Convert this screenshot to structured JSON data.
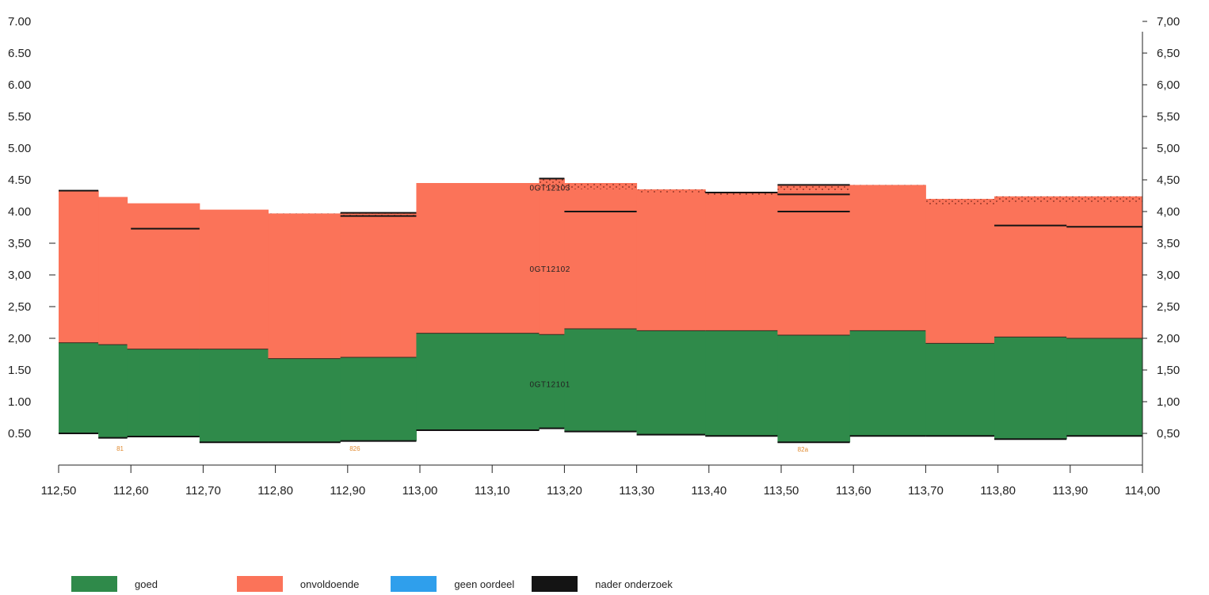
{
  "chart_data": {
    "type": "area",
    "x_ticks": [
      "112,50",
      "112,60",
      "112,70",
      "112,80",
      "112,90",
      "113,00",
      "113,10",
      "113,20",
      "113,30",
      "113,40",
      "113,50",
      "113,60",
      "113,70",
      "113,80",
      "113,90",
      "114,00"
    ],
    "xlim": [
      112.5,
      114.0
    ],
    "ylim": [
      0,
      7
    ],
    "left_y_ticks": [
      {
        "v": 7.0,
        "label": "7.00"
      },
      {
        "v": 6.5,
        "label": "6.50"
      },
      {
        "v": 6.0,
        "label": "6.00"
      },
      {
        "v": 5.5,
        "label": "5.50"
      },
      {
        "v": 5.0,
        "label": "5.00"
      },
      {
        "v": 4.5,
        "label": "4.50"
      },
      {
        "v": 4.0,
        "label": "4.00"
      },
      {
        "v": 3.5,
        "label": "3,50"
      },
      {
        "v": 3.0,
        "label": "3,00"
      },
      {
        "v": 2.5,
        "label": "2,50"
      },
      {
        "v": 2.0,
        "label": "2,00"
      },
      {
        "v": 1.5,
        "label": "1.50"
      },
      {
        "v": 1.0,
        "label": "1.00"
      },
      {
        "v": 0.5,
        "label": "0.50"
      }
    ],
    "right_y_ticks": [
      {
        "v": 7.0,
        "label": "7,00"
      },
      {
        "v": 6.5,
        "label": "6,50"
      },
      {
        "v": 6.0,
        "label": "6,00"
      },
      {
        "v": 5.5,
        "label": "5,50"
      },
      {
        "v": 5.0,
        "label": "5,00"
      },
      {
        "v": 4.5,
        "label": "4,50"
      },
      {
        "v": 4.0,
        "label": "4,00"
      },
      {
        "v": 3.5,
        "label": "3,50"
      },
      {
        "v": 3.0,
        "label": "3,00"
      },
      {
        "v": 2.5,
        "label": "2,50"
      },
      {
        "v": 2.0,
        "label": "2,00"
      },
      {
        "v": 1.5,
        "label": "1,50"
      },
      {
        "v": 1.0,
        "label": "1,00"
      },
      {
        "v": 0.5,
        "label": "0,50"
      }
    ],
    "segments": [
      {
        "x0": 112.5,
        "x1": 112.555,
        "base": 0.5,
        "green_top": 1.93,
        "red_top": 4.33,
        "dotted_top": 4.33
      },
      {
        "x0": 112.555,
        "x1": 112.595,
        "base": 0.43,
        "green_top": 1.9,
        "red_top": 4.23,
        "dotted_top": 4.23
      },
      {
        "x0": 112.595,
        "x1": 112.695,
        "base": 0.45,
        "green_top": 1.83,
        "red_top": 4.13,
        "dotted_top": 4.13
      },
      {
        "x0": 112.695,
        "x1": 112.79,
        "base": 0.36,
        "green_top": 1.83,
        "red_top": 4.03,
        "dotted_top": 4.03
      },
      {
        "x0": 112.79,
        "x1": 112.89,
        "base": 0.36,
        "green_top": 1.68,
        "red_top": 3.95,
        "dotted_top": 3.97
      },
      {
        "x0": 112.89,
        "x1": 112.995,
        "base": 0.38,
        "green_top": 1.7,
        "red_top": 3.93,
        "dotted_top": 3.98
      },
      {
        "x0": 112.995,
        "x1": 113.165,
        "base": 0.55,
        "green_top": 2.08,
        "red_top": 4.45,
        "dotted_top": 4.45
      },
      {
        "x0": 113.165,
        "x1": 113.2,
        "base": 0.58,
        "green_top": 2.06,
        "red_top": 4.35,
        "dotted_top": 4.52
      },
      {
        "x0": 113.2,
        "x1": 113.3,
        "base": 0.53,
        "green_top": 2.15,
        "red_top": 4.35,
        "dotted_top": 4.45
      },
      {
        "x0": 113.3,
        "x1": 113.395,
        "base": 0.48,
        "green_top": 2.12,
        "red_top": 4.3,
        "dotted_top": 4.35
      },
      {
        "x0": 113.395,
        "x1": 113.495,
        "base": 0.46,
        "green_top": 2.12,
        "red_top": 4.25,
        "dotted_top": 4.3
      },
      {
        "x0": 113.495,
        "x1": 113.595,
        "base": 0.36,
        "green_top": 2.05,
        "red_top": 4.33,
        "dotted_top": 4.42
      },
      {
        "x0": 113.595,
        "x1": 113.7,
        "base": 0.46,
        "green_top": 2.12,
        "red_top": 4.4,
        "dotted_top": 4.42
      },
      {
        "x0": 113.7,
        "x1": 113.795,
        "base": 0.46,
        "green_top": 1.92,
        "red_top": 4.1,
        "dotted_top": 4.2
      },
      {
        "x0": 113.795,
        "x1": 113.895,
        "base": 0.41,
        "green_top": 2.02,
        "red_top": 4.15,
        "dotted_top": 4.24
      },
      {
        "x0": 113.895,
        "x1": 114.0,
        "base": 0.46,
        "green_top": 2.0,
        "red_top": 4.15,
        "dotted_top": 4.24
      }
    ],
    "black_marks": [
      {
        "x0": 112.5,
        "x1": 112.555,
        "y": 4.33
      },
      {
        "x0": 112.6,
        "x1": 112.695,
        "y": 3.73
      },
      {
        "x0": 112.89,
        "x1": 112.995,
        "y": 3.93
      },
      {
        "x0": 112.89,
        "x1": 112.995,
        "y": 3.98
      },
      {
        "x0": 113.165,
        "x1": 113.2,
        "y": 4.52
      },
      {
        "x0": 113.2,
        "x1": 113.3,
        "y": 4.0
      },
      {
        "x0": 113.395,
        "x1": 113.495,
        "y": 4.3
      },
      {
        "x0": 113.495,
        "x1": 113.595,
        "y": 4.42
      },
      {
        "x0": 113.495,
        "x1": 113.595,
        "y": 4.27
      },
      {
        "x0": 113.495,
        "x1": 113.595,
        "y": 4.0
      },
      {
        "x0": 113.795,
        "x1": 113.895,
        "y": 3.78
      },
      {
        "x0": 113.895,
        "x1": 114.0,
        "y": 3.76
      }
    ],
    "layer_labels": [
      {
        "text": "0GT12103",
        "x": 113.18,
        "y": 4.38
      },
      {
        "text": "0GT12102",
        "x": 113.18,
        "y": 3.1
      },
      {
        "text": "0GT12101",
        "x": 113.18,
        "y": 1.28
      }
    ],
    "bottom_labels": [
      {
        "text": "81",
        "x": 112.585,
        "y": 0.26
      },
      {
        "text": "826",
        "x": 112.91,
        "y": 0.26
      },
      {
        "text": "82a",
        "x": 113.53,
        "y": 0.25
      }
    ],
    "colors": {
      "goed": "#2f8a4a",
      "onvoldoende": "#fb7359",
      "geen_oordeel": "#2f9fec",
      "nader_onderzoek": "#141414"
    }
  },
  "legend": [
    {
      "label": "goed",
      "color": "#2f8a4a"
    },
    {
      "label": "onvoldoende",
      "color": "#fb7359"
    },
    {
      "label": "geen oordeel",
      "color": "#2f9fec"
    },
    {
      "label": "nader onderzoek",
      "color": "#141414"
    }
  ]
}
